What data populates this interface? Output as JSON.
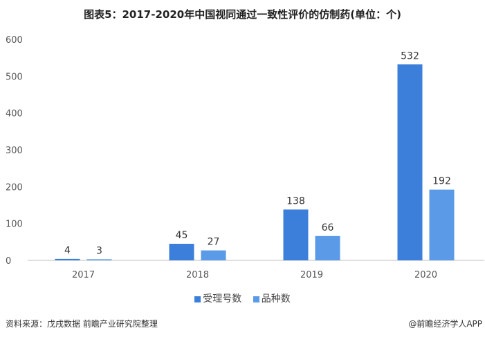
{
  "colors": {
    "series1": "#3b7fdb",
    "series2": "#5b9ae6",
    "axis": "#bfbfbf",
    "text": "#555555"
  },
  "footer": {
    "source": "资料来源：戊戌数据 前瞻产业研究院整理",
    "brand": "@前瞻经济学人APP"
  },
  "chart_data": {
    "type": "bar",
    "title": "图表5：2017-2020年中国视同通过一致性评价的仿制药(单位：个)",
    "categories": [
      "2017",
      "2018",
      "2019",
      "2020"
    ],
    "series": [
      {
        "name": "受理号数",
        "values": [
          4,
          45,
          138,
          532
        ]
      },
      {
        "name": "品种数",
        "values": [
          3,
          27,
          66,
          192
        ]
      }
    ],
    "ylim": [
      0,
      600
    ],
    "yticks": [
      0,
      100,
      200,
      300,
      400,
      500,
      600
    ],
    "grid": false,
    "legend": "bottom",
    "xlabel": "",
    "ylabel": ""
  }
}
